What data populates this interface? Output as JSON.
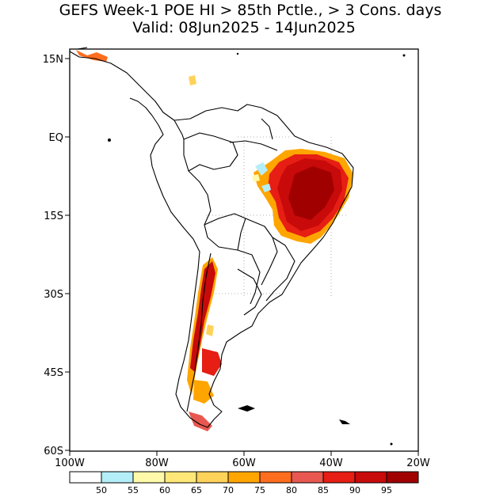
{
  "title": {
    "line1": "GEFS Week-1 POE HI > 85th Pctle., > 3 Cons. days",
    "line2": "Valid: 08Jun2025 - 14Jun2025"
  },
  "map": {
    "lat_labels": [
      "15N",
      "EQ",
      "15S",
      "30S",
      "45S",
      "60S"
    ],
    "lon_labels": [
      "100W",
      "80W",
      "60W",
      "40W",
      "20W"
    ]
  },
  "colorbar": {
    "colors": [
      "#ffffff",
      "#b4eef8",
      "#fffaaa",
      "#ffe878",
      "#ffd25a",
      "#ffa500",
      "#ff6d1e",
      "#e85850",
      "#e61e14",
      "#c80a0a",
      "#a00000"
    ],
    "labels": [
      "50",
      "55",
      "60",
      "65",
      "70",
      "75",
      "80",
      "85",
      "90",
      "95"
    ]
  }
}
